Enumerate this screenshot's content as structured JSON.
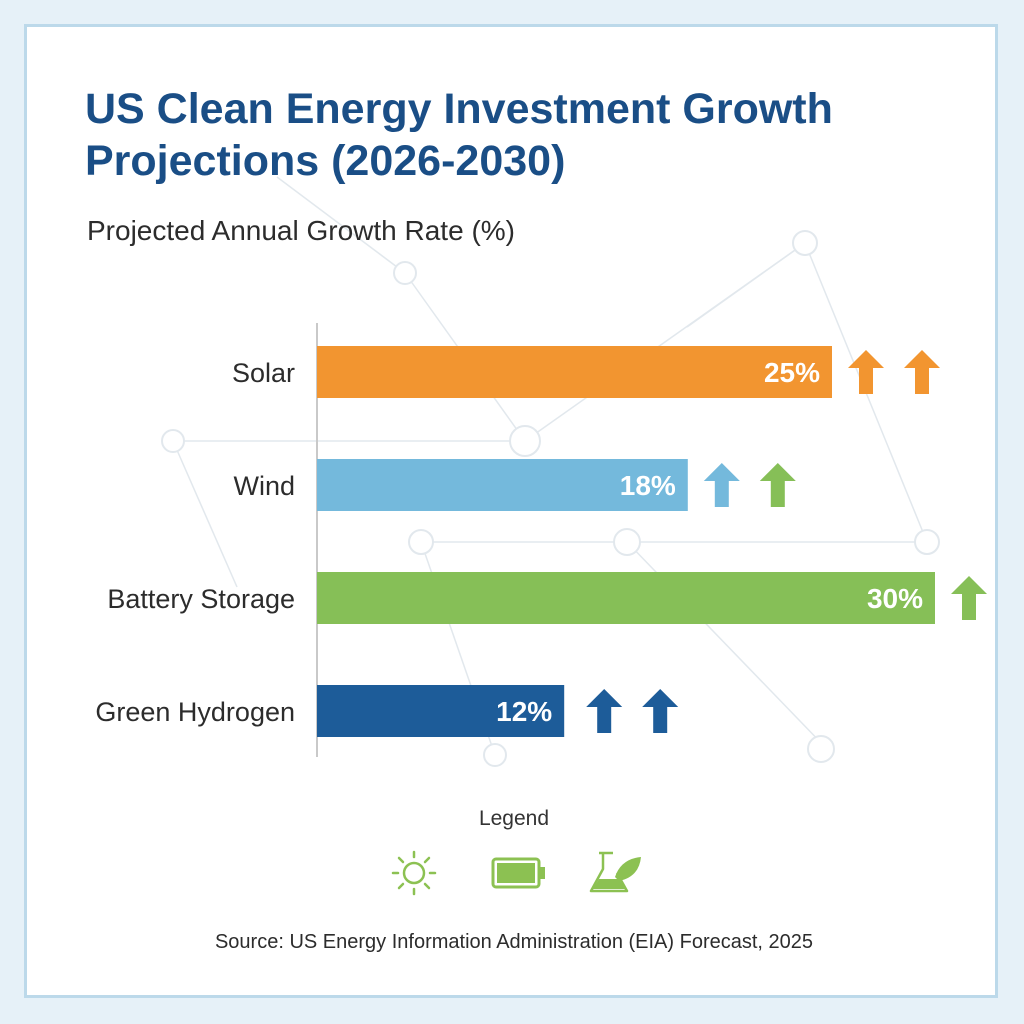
{
  "header": {
    "title": "US Clean Energy Investment Growth Projections (2026-2030)",
    "subtitle": "Projected Annual Growth Rate (%)"
  },
  "legend": {
    "label": "Legend",
    "icons": [
      "sun-icon",
      "battery-icon",
      "flask-leaf-icon"
    ],
    "color": "#8cc152"
  },
  "footer": {
    "source": "Source: US Energy Information Administration (EIA) Forecast, 2025"
  },
  "chart_data": {
    "type": "bar",
    "orientation": "horizontal",
    "title": "US Clean Energy Investment Growth Projections (2026-2030)",
    "subtitle": "Projected Annual Growth Rate (%)",
    "categories": [
      "Solar",
      "Wind",
      "Battery Storage",
      "Green Hydrogen"
    ],
    "values": [
      25,
      18,
      30,
      12
    ],
    "value_labels": [
      "25%",
      "18%",
      "30%",
      "12%"
    ],
    "colors": [
      "#f29530",
      "#74b9dc",
      "#86bf57",
      "#1d5c99"
    ],
    "arrow_colors": [
      [
        "#f29530",
        "#f29530"
      ],
      [
        "#74b9dc",
        "#86bf57"
      ],
      [
        "#86bf57",
        "#86bf57"
      ],
      [
        "#1d5c99",
        "#1d5c99"
      ]
    ],
    "grid": false,
    "legend_position": "bottom-center"
  }
}
